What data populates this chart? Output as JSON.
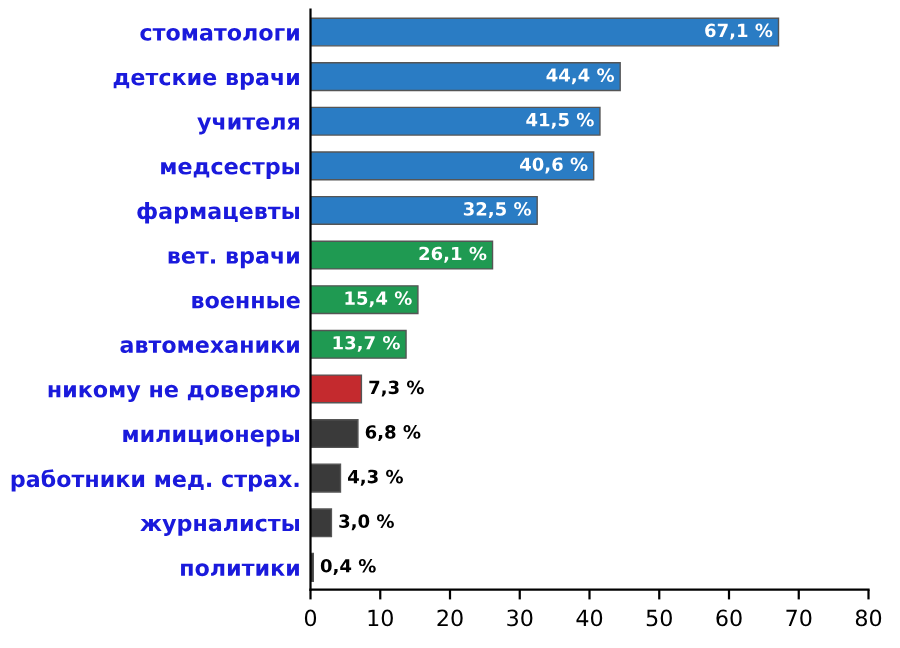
{
  "chart_data": {
    "type": "bar",
    "orientation": "horizontal",
    "categories": [
      "стоматологи",
      "детские врачи",
      "учителя",
      "медсестры",
      "фармацевты",
      "вет. врачи",
      "военные",
      "автомеханики",
      "никому не доверяю",
      "милиционеры",
      "работники мед. страх.",
      "журналисты",
      "политики"
    ],
    "values": [
      67.1,
      44.4,
      41.5,
      40.6,
      32.5,
      26.1,
      15.4,
      13.7,
      7.3,
      6.8,
      4.3,
      3.0,
      0.4
    ],
    "value_labels": [
      "67,1 %",
      "44,4 %",
      "41,5 %",
      "40,6 %",
      "32,5 %",
      "26,1 %",
      "15,4 %",
      "13,7 %",
      "7,3 %",
      "6,8 %",
      "4,3 %",
      "3,0 %",
      "0,4 %"
    ],
    "colors": [
      "#2a7cc4",
      "#2a7cc4",
      "#2a7cc4",
      "#2a7cc4",
      "#2a7cc4",
      "#1f9a52",
      "#1f9a52",
      "#1f9a52",
      "#c42a2e",
      "#3a3a3a",
      "#3a3a3a",
      "#3a3a3a",
      "#3a3a3a"
    ],
    "xlim": [
      0,
      80
    ],
    "xticks": [
      0,
      10,
      20,
      30,
      40,
      50,
      60,
      70,
      80
    ],
    "grid": false
  }
}
